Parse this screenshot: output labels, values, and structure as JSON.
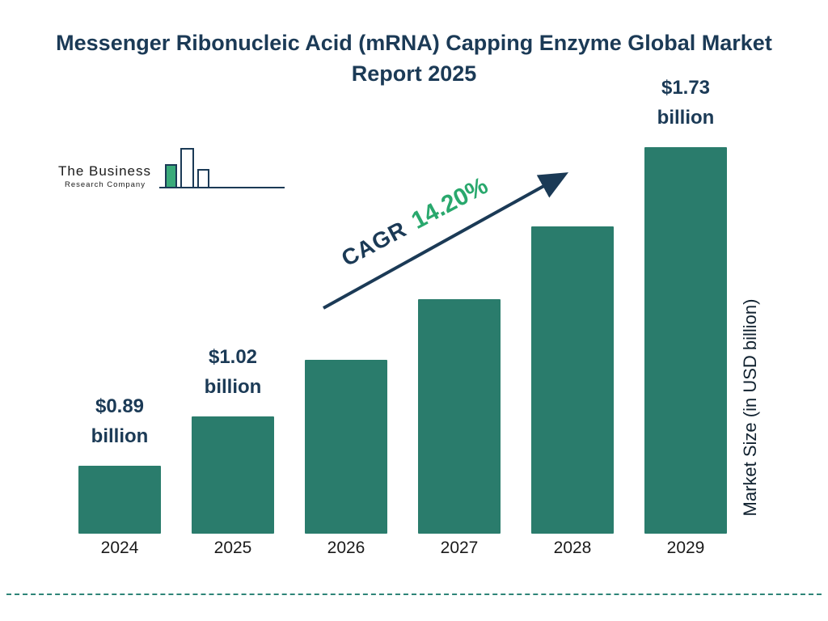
{
  "title": "Messenger Ribonucleic Acid (mRNA) Capping Enzyme Global Market Report 2025",
  "logo": {
    "line1": "The Business",
    "line2": "Research Company"
  },
  "cagr": {
    "label": "CAGR",
    "value": "14.20%"
  },
  "colors": {
    "bar": "#2A7C6C",
    "navy": "#1B3A56",
    "green": "#29A86D",
    "divider": "#2E8578"
  },
  "chart_data": {
    "type": "bar",
    "title": "Messenger Ribonucleic Acid (mRNA) Capping Enzyme Global Market Report 2025",
    "categories": [
      "2024",
      "2025",
      "2026",
      "2027",
      "2028",
      "2029"
    ],
    "values": [
      0.89,
      1.02,
      1.17,
      1.33,
      1.52,
      1.73
    ],
    "value_labels": [
      "$0.89 billion",
      "$1.02 billion",
      null,
      null,
      null,
      "$1.73 billion"
    ],
    "series_name": "Market Size",
    "xlabel": "",
    "ylabel": "Market Size (in USD billion)",
    "unit": "USD billion",
    "cagr": "14.20%",
    "legend": "none",
    "grid": false,
    "bar_color": "#2A7C6C"
  }
}
